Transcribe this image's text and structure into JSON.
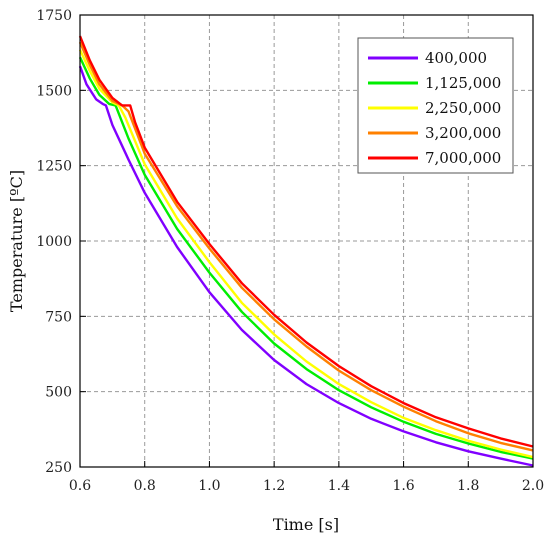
{
  "chart_data": {
    "type": "line",
    "title": "",
    "xlabel": "Time [s]",
    "ylabel": "Temperature [ºC]",
    "xlim": [
      0.6,
      2.0
    ],
    "ylim": [
      250,
      1750
    ],
    "x_ticks": [
      "0.6",
      "0.8",
      "1.0",
      "1.2",
      "1.4",
      "1.6",
      "1.8",
      "2.0"
    ],
    "y_ticks": [
      "250",
      "500",
      "750",
      "1000",
      "1250",
      "1500",
      "1750"
    ],
    "grid": true,
    "legend_position": "top-right",
    "series": [
      {
        "name": "400,000",
        "color": "#8000ff",
        "x": [
          0.6,
          0.62,
          0.65,
          0.67,
          0.68,
          0.7,
          0.75,
          0.8,
          0.9,
          1.0,
          1.1,
          1.2,
          1.3,
          1.4,
          1.5,
          1.6,
          1.7,
          1.8,
          1.9,
          2.0
        ],
        "y": [
          1580,
          1520,
          1470,
          1455,
          1450,
          1385,
          1270,
          1160,
          980,
          830,
          705,
          605,
          525,
          462,
          410,
          368,
          332,
          302,
          278,
          255
        ]
      },
      {
        "name": "1,125,000",
        "color": "#00ee00",
        "x": [
          0.6,
          0.63,
          0.66,
          0.69,
          0.71,
          0.75,
          0.8,
          0.9,
          1.0,
          1.1,
          1.2,
          1.3,
          1.4,
          1.5,
          1.6,
          1.7,
          1.8,
          1.9,
          2.0
        ],
        "y": [
          1610,
          1540,
          1485,
          1455,
          1450,
          1340,
          1220,
          1040,
          895,
          765,
          660,
          575,
          505,
          448,
          400,
          360,
          328,
          300,
          278
        ]
      },
      {
        "name": "2,250,000",
        "color": "#ffff00",
        "x": [
          0.6,
          0.63,
          0.66,
          0.7,
          0.72,
          0.74,
          0.8,
          0.9,
          1.0,
          1.1,
          1.2,
          1.3,
          1.4,
          1.5,
          1.6,
          1.7,
          1.8,
          1.9,
          2.0
        ],
        "y": [
          1635,
          1565,
          1505,
          1460,
          1450,
          1410,
          1255,
          1075,
          930,
          795,
          690,
          600,
          525,
          465,
          413,
          372,
          337,
          308,
          283
        ]
      },
      {
        "name": "3,200,000",
        "color": "#ff8000",
        "x": [
          0.6,
          0.63,
          0.66,
          0.7,
          0.73,
          0.75,
          0.8,
          0.9,
          1.0,
          1.1,
          1.2,
          1.3,
          1.4,
          1.5,
          1.6,
          1.7,
          1.8,
          1.9,
          2.0
        ],
        "y": [
          1660,
          1585,
          1520,
          1465,
          1450,
          1430,
          1290,
          1115,
          975,
          845,
          740,
          650,
          570,
          505,
          450,
          402,
          362,
          330,
          305
        ]
      },
      {
        "name": "7,000,000",
        "color": "#ff0000",
        "x": [
          0.6,
          0.63,
          0.66,
          0.7,
          0.73,
          0.755,
          0.77,
          0.8,
          0.9,
          1.0,
          1.1,
          1.2,
          1.3,
          1.4,
          1.5,
          1.6,
          1.7,
          1.8,
          1.9,
          2.0
        ],
        "y": [
          1680,
          1600,
          1535,
          1475,
          1450,
          1450,
          1395,
          1310,
          1130,
          990,
          860,
          755,
          663,
          585,
          518,
          462,
          415,
          378,
          345,
          318
        ]
      }
    ]
  }
}
